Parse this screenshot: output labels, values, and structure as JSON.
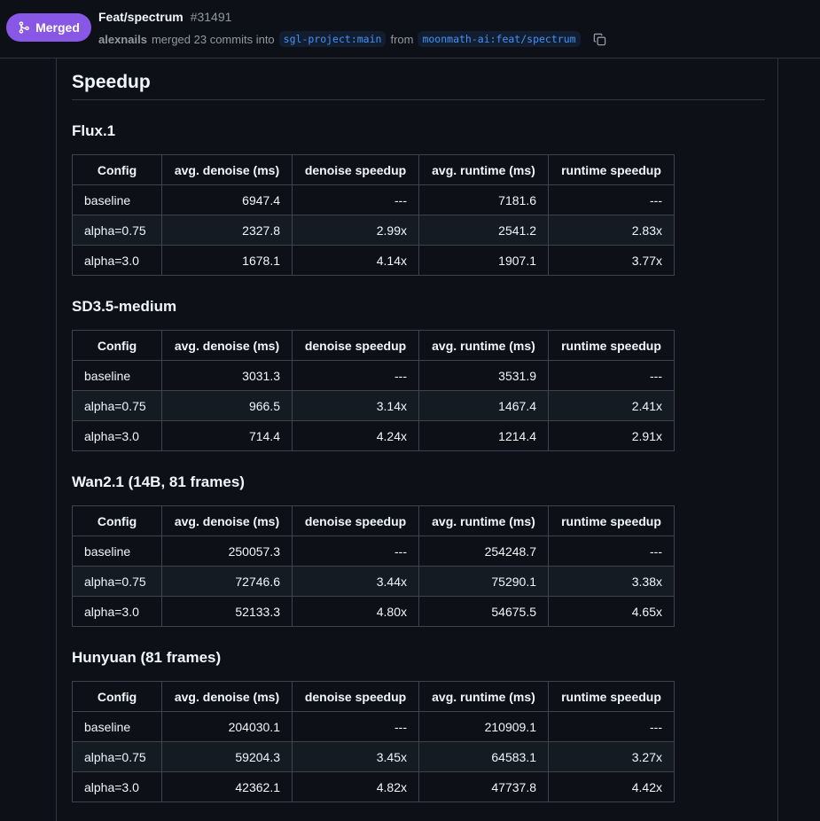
{
  "header": {
    "status": "Merged",
    "title": "Feat/spectrum",
    "number": "#31491",
    "author": "alexnails",
    "merge_text": "merged 23 commits into",
    "base_branch": "sgl-project:main",
    "from_text": "from",
    "head_branch": "moonmath-ai:feat/spectrum",
    "colors": {
      "merged": "#8957e5",
      "branch": "#4493f8"
    }
  },
  "body": {
    "heading": "Speedup",
    "columns": [
      "Config",
      "avg. denoise (ms)",
      "denoise speedup",
      "avg. runtime (ms)",
      "runtime speedup"
    ],
    "sections": [
      {
        "title": "Flux.1",
        "rows": [
          [
            "baseline",
            "6947.4",
            "---",
            "7181.6",
            "---"
          ],
          [
            "alpha=0.75",
            "2327.8",
            "2.99x",
            "2541.2",
            "2.83x"
          ],
          [
            "alpha=3.0",
            "1678.1",
            "4.14x",
            "1907.1",
            "3.77x"
          ]
        ]
      },
      {
        "title": "SD3.5-medium",
        "rows": [
          [
            "baseline",
            "3031.3",
            "---",
            "3531.9",
            "---"
          ],
          [
            "alpha=0.75",
            "966.5",
            "3.14x",
            "1467.4",
            "2.41x"
          ],
          [
            "alpha=3.0",
            "714.4",
            "4.24x",
            "1214.4",
            "2.91x"
          ]
        ]
      },
      {
        "title": "Wan2.1 (14B, 81 frames)",
        "rows": [
          [
            "baseline",
            "250057.3",
            "---",
            "254248.7",
            "---"
          ],
          [
            "alpha=0.75",
            "72746.6",
            "3.44x",
            "75290.1",
            "3.38x"
          ],
          [
            "alpha=3.0",
            "52133.3",
            "4.80x",
            "54675.5",
            "4.65x"
          ]
        ]
      },
      {
        "title": "Hunyuan (81 frames)",
        "rows": [
          [
            "baseline",
            "204030.1",
            "---",
            "210909.1",
            "---"
          ],
          [
            "alpha=0.75",
            "59204.3",
            "3.45x",
            "64583.1",
            "3.27x"
          ],
          [
            "alpha=3.0",
            "42362.1",
            "4.82x",
            "47737.8",
            "4.42x"
          ]
        ]
      }
    ]
  }
}
